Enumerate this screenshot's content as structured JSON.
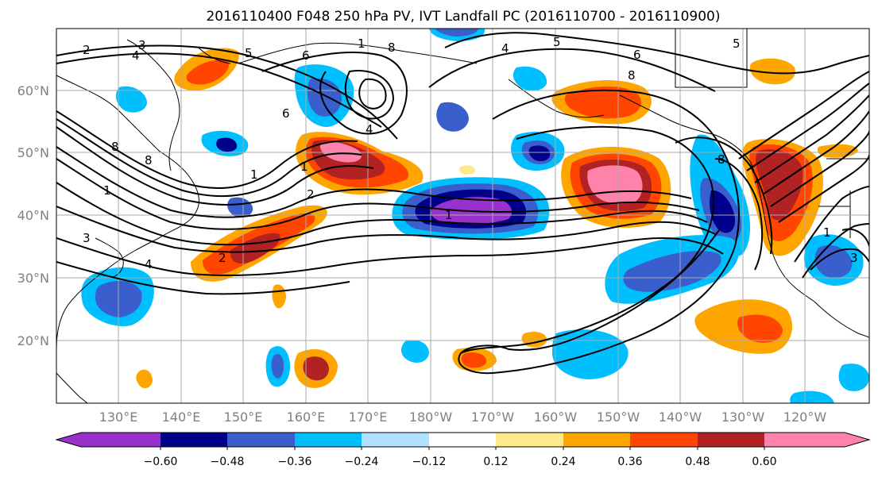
{
  "title": "2016110400 F048 250 hPa PV, IVT Landfall PC (2016110700 - 2016110900)",
  "map": {
    "lat_labels": [
      "60°N",
      "50°N",
      "40°N",
      "30°N",
      "20°N"
    ],
    "lon_labels": [
      "130°E",
      "140°E",
      "150°E",
      "160°E",
      "170°E",
      "180°W",
      "170°W",
      "160°W",
      "150°W",
      "140°W",
      "130°W",
      "120°W"
    ],
    "grid": true,
    "coastlines": true
  },
  "colorbar": {
    "ticks": [
      "−0.60",
      "−0.48",
      "−0.36",
      "−0.24",
      "−0.12",
      "0.12",
      "0.24",
      "0.36",
      "0.48",
      "0.60"
    ],
    "colors": [
      "#9932cc",
      "#00008b",
      "#3a5fcd",
      "#00bfff",
      "#b0e2ff",
      "#ffffff",
      "#ffe98a",
      "#ffa500",
      "#ff4500",
      "#b22222",
      "#ff82ab"
    ],
    "extend": "both"
  },
  "contour_labels": [
    "2",
    "3",
    "4",
    "5",
    "1",
    "8",
    "6",
    "5",
    "4",
    "5",
    "6",
    "8",
    "6",
    "4",
    "8",
    "1",
    "2",
    "1",
    "8",
    "1",
    "3",
    "4",
    "2",
    "1",
    "3",
    "8",
    "1"
  ]
}
